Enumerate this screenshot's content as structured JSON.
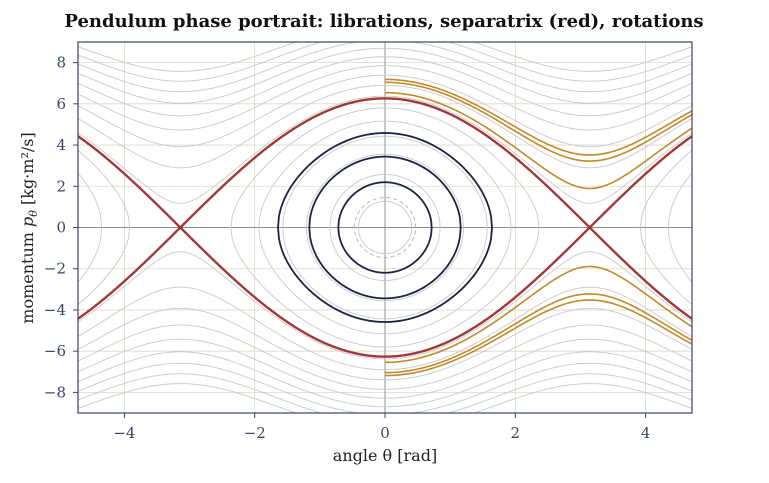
{
  "chart_data": {
    "type": "line",
    "title": "Pendulum phase portrait: librations, separatrix (red), rotations",
    "xlabel": "angle  θ  [rad]",
    "ylabel": "momentum  p_θ  [kg·m²/s]",
    "ylabel_parts": {
      "before": "momentum  ",
      "symbol": "p",
      "sub": "θ",
      "after": "  [kg·m²/s]"
    },
    "xlim": [
      -4.712,
      4.712
    ],
    "ylim": [
      -9.0,
      9.0
    ],
    "xticks": [
      -4,
      -2,
      0,
      2,
      4
    ],
    "yticks": [
      -8,
      -6,
      -4,
      -2,
      0,
      2,
      4,
      6,
      8
    ],
    "xtick_labels": [
      "−4",
      "−2",
      "0",
      "2",
      "4"
    ],
    "ytick_labels": [
      "−8",
      "−6",
      "−4",
      "−2",
      "0",
      "2",
      "4",
      "6",
      "8"
    ],
    "grid": true,
    "energy_scale": 9.81,
    "colors": {
      "background_contours": "#c8c8c8",
      "grid": "#ddd8c8",
      "zero_lines": "#8a8a8a",
      "separatrix": "#a03a3a",
      "librations": "#1a2444",
      "rotations": "#c08a2a",
      "dashed_orbit": "#b4b4c4",
      "frame": "#3a4466"
    },
    "series": [
      {
        "role": "background-contours",
        "energy_levels": [
          -9,
          -6.5,
          -3.5,
          0,
          3.5,
          7,
          10.5,
          14,
          17.5,
          21,
          24.5,
          28,
          31.5,
          35,
          38.5
        ]
      },
      {
        "role": "separatrix",
        "energy_levels": [
          9.81
        ]
      },
      {
        "role": "librations",
        "energy_levels": [
          -7.4,
          -3.9,
          0.7
        ]
      },
      {
        "role": "rotations",
        "theta_start": 0.0,
        "energy_levels": [
          11.6,
          15.0,
          16.0
        ]
      },
      {
        "role": "dashed-orbit",
        "energy_levels": [
          -8.75
        ]
      }
    ]
  }
}
